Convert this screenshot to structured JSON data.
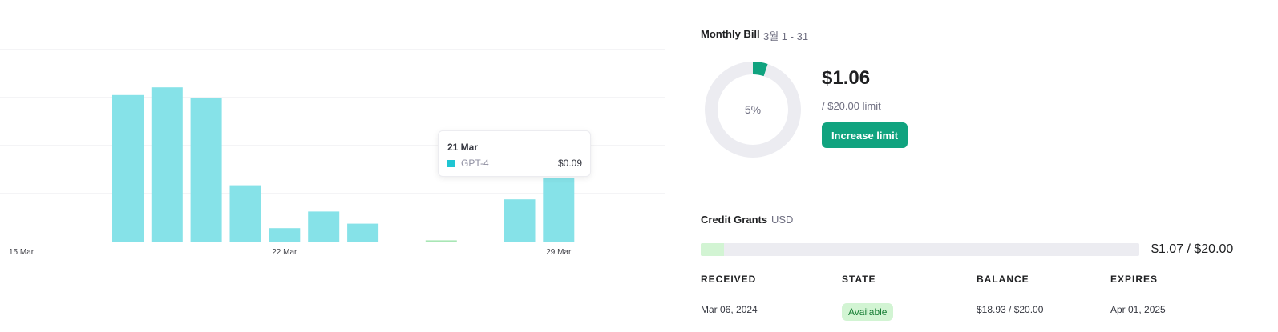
{
  "chart_data": {
    "type": "bar",
    "categories": [
      "15 Mar",
      "16 Mar",
      "17 Mar",
      "18 Mar",
      "19 Mar",
      "20 Mar",
      "21 Mar",
      "22 Mar",
      "23 Mar",
      "24 Mar",
      "25 Mar",
      "26 Mar",
      "27 Mar",
      "28 Mar",
      "29 Mar",
      "30 Mar",
      "31 Mar"
    ],
    "x_tick_labels": [
      "15 Mar",
      "22 Mar",
      "29 Mar"
    ],
    "series": [
      {
        "values": [
          0,
          0,
          0,
          0.229,
          0.241,
          0.225,
          0.088,
          0.021,
          0.047,
          0.028,
          0,
          0.002,
          0,
          0.066,
          0.1,
          0,
          0
        ]
      }
    ],
    "highlight_index": 11,
    "ylim": [
      0,
      0.3
    ],
    "y_gridlines": [
      0.075,
      0.15,
      0.225,
      0.3
    ],
    "grid": true
  },
  "tooltip": {
    "date": "21 Mar",
    "series_name": "GPT-4",
    "value": "$0.09",
    "swatch_color": "#1fc5d2"
  },
  "monthly_bill": {
    "title": "Monthly Bill",
    "range": "3월 1 - 31",
    "amount": "$1.06",
    "limit_text": "/ $20.00 limit",
    "percent_label": "5%",
    "percent": 5,
    "increase_button": "Increase limit",
    "accent_color": "#10a37f"
  },
  "credit_grants": {
    "title": "Credit Grants",
    "currency": "USD",
    "used_fraction": 0.0535,
    "amount_text": "$1.07 / $20.00",
    "columns": [
      "RECEIVED",
      "STATE",
      "BALANCE",
      "EXPIRES"
    ],
    "rows": [
      {
        "received": "Mar 06, 2024",
        "state": "Available",
        "balance": "$18.93 / $20.00",
        "expires": "Apr 01, 2025"
      }
    ]
  }
}
